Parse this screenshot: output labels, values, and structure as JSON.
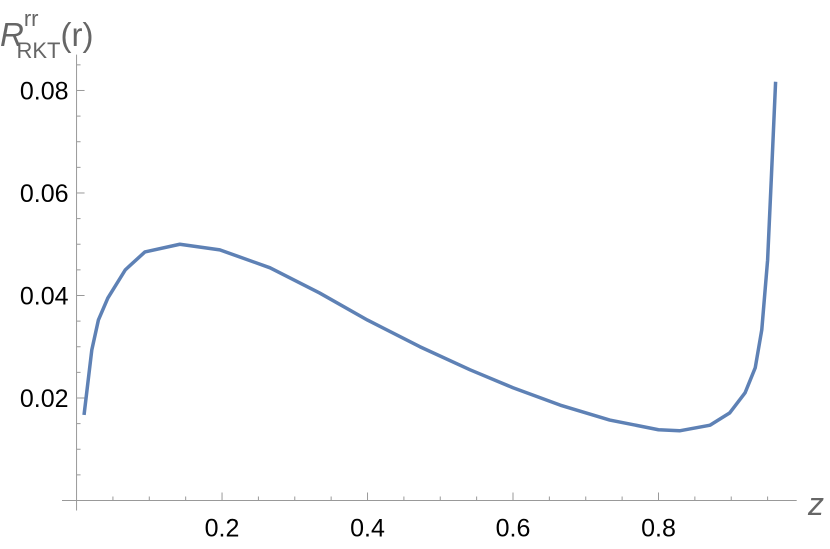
{
  "chart_data": {
    "type": "line",
    "y_label": {
      "base": "R",
      "sup": "rr",
      "sub": "RKT",
      "arg": "(r)"
    },
    "x_label": "z",
    "x": [
      0.0103,
      0.021,
      0.03,
      0.043,
      0.067,
      0.094,
      0.142,
      0.197,
      0.266,
      0.334,
      0.4,
      0.472,
      0.541,
      0.6,
      0.665,
      0.733,
      0.8,
      0.829,
      0.871,
      0.898,
      0.919,
      0.933,
      0.942,
      0.95,
      0.955,
      0.961
    ],
    "values": [
      0.0167,
      0.0294,
      0.0352,
      0.0395,
      0.045,
      0.0485,
      0.05,
      0.0489,
      0.0454,
      0.0405,
      0.0352,
      0.03,
      0.0255,
      0.022,
      0.0186,
      0.0157,
      0.0138,
      0.0136,
      0.0147,
      0.0171,
      0.021,
      0.0259,
      0.0333,
      0.0469,
      0.0625,
      0.0817
    ],
    "color": "#5e81b5",
    "xlim": [
      -0.02,
      0.99
    ],
    "ylim": [
      0,
      0.087
    ],
    "xticks": [
      0.2,
      0.4,
      0.6,
      0.8
    ],
    "yticks": [
      0.02,
      0.04,
      0.06,
      0.08
    ],
    "xminorticks": [
      0.05,
      0.1,
      0.15,
      0.25,
      0.3,
      0.35,
      0.45,
      0.5,
      0.55,
      0.65,
      0.7,
      0.75,
      0.85,
      0.9,
      0.95
    ],
    "yminorticks": [
      0.005,
      0.01,
      0.015,
      0.025,
      0.03,
      0.035,
      0.045,
      0.05,
      0.055,
      0.065,
      0.07,
      0.075,
      0.085
    ]
  }
}
